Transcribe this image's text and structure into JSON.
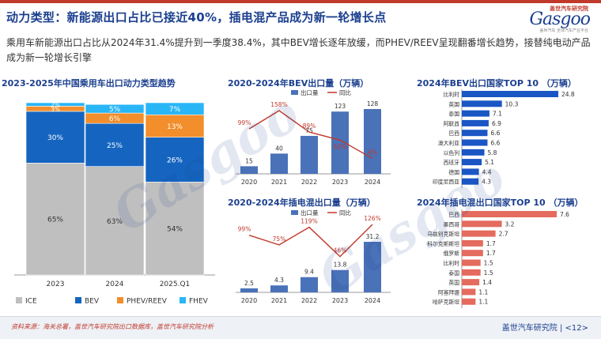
{
  "header": {
    "title": "动力类型：新能源出口占比已接近40%，插电混产品成为新一轮增长点",
    "logo_cn": "盖世汽车研究院",
    "logo_en": "Gasgoo",
    "logo_slogan": "盖世汽车 全球汽车产业平台"
  },
  "summary": "乘用车新能源出口占比从2024年31.4%提升到一季度38.4%，其中BEV增长逐年放缓，而PHEV/REEV呈现翻番增长趋势，接替纯电动产品成为新一轮增长引擎",
  "footer": {
    "source": "资料来源：海关总署，盖世汽车研究院出口数据库，盖世汽车研究院分析",
    "org": "盖世汽车研究院",
    "page": "<12>"
  },
  "colors": {
    "gray": "#bfbfbf",
    "blue": "#1565c0",
    "orange": "#f28e2b",
    "cyan": "#29b6f6",
    "bar_blue": "#4a72b8",
    "growth_red": "#c0392b",
    "hbar_blue": "#1a56c4"
  },
  "chart_data": [
    {
      "id": "mix",
      "type": "bar",
      "stacked": true,
      "title": "2023-2025年中国乘用车出口动力类型趋势",
      "categories": [
        "2023",
        "2024",
        "2025.Q1"
      ],
      "series": [
        {
          "name": "ICE",
          "values": [
            65,
            63,
            54
          ],
          "labels": [
            "65%",
            "63%",
            "54%"
          ],
          "color": "#bfbfbf"
        },
        {
          "name": "BEV",
          "values": [
            30,
            25,
            26
          ],
          "labels": [
            "30%",
            "25%",
            "26%"
          ],
          "color": "#1565c0"
        },
        {
          "name": "PHEV/REEV",
          "values": [
            3,
            6,
            13
          ],
          "labels": [
            "3%",
            "6%",
            "13%"
          ],
          "color": "#f28e2b"
        },
        {
          "name": "FHEV",
          "values": [
            2,
            5,
            7
          ],
          "labels": [
            "2%",
            "5%",
            "7%"
          ],
          "color": "#29b6f6"
        }
      ],
      "ylim": [
        0,
        100
      ],
      "legend": "bottom"
    },
    {
      "id": "bev",
      "type": "bar",
      "title": "2020-2024年BEV出口量（万辆）",
      "categories": [
        "2020",
        "2021",
        "2022",
        "2023",
        "2024"
      ],
      "series": [
        {
          "name": "出口量",
          "values": [
            15,
            40,
            75,
            123,
            128
          ],
          "labels": [
            "15",
            "40",
            "75",
            "123",
            "128"
          ]
        },
        {
          "name": "同比",
          "values": [
            99,
            158,
            89,
            63,
            4
          ],
          "labels": [
            "99%",
            "158%",
            "89%",
            "63%",
            "4%"
          ]
        }
      ],
      "legend": "top"
    },
    {
      "id": "phev",
      "type": "bar",
      "title": "2020-2024年插电混出口量（万辆）",
      "categories": [
        "2020",
        "2021",
        "2022",
        "2023",
        "2024"
      ],
      "series": [
        {
          "name": "出口量",
          "values": [
            2.5,
            4.3,
            9.4,
            13.8,
            31.2
          ],
          "labels": [
            "2.5",
            "4.3",
            "9.4",
            "13.8",
            "31.2"
          ]
        },
        {
          "name": "同比",
          "values": [
            99,
            75,
            119,
            46,
            126
          ],
          "labels": [
            "99%",
            "75%",
            "119%",
            "46%",
            "126%"
          ]
        }
      ],
      "legend": "top"
    },
    {
      "id": "bevTop",
      "type": "bar",
      "orientation": "horizontal",
      "title": "2024年BEV出口国家TOP 10 （万辆）",
      "categories": [
        "比利时",
        "英国",
        "泰国",
        "阿联酋",
        "巴西",
        "澳大利亚",
        "以色列",
        "西班牙",
        "德国",
        "印度尼西亚"
      ],
      "values": [
        24.8,
        10.3,
        7.1,
        6.9,
        6.6,
        6.6,
        5.8,
        5.1,
        4.4,
        4.3
      ],
      "labels": [
        "24.8",
        "10.3",
        "7.1",
        "6.9",
        "6.6",
        "6.6",
        "5.8",
        "5.1",
        "4.4",
        "4.3"
      ]
    },
    {
      "id": "phevTop",
      "type": "bar",
      "orientation": "horizontal",
      "title": "2024年插电混出口国家TOP 10 （万辆）",
      "categories": [
        "巴西",
        "墨西哥",
        "乌兹别克斯坦",
        "科尔克斯斯坦",
        "俄罗斯",
        "比利时",
        "泰国",
        "英国",
        "阿塞拜疆",
        "哈萨克斯坦"
      ],
      "values": [
        7.6,
        3.2,
        2.7,
        1.7,
        1.7,
        1.5,
        1.5,
        1.4,
        1.1,
        1.1
      ],
      "labels": [
        "7.6",
        "3.2",
        "2.7",
        "1.7",
        "1.7",
        "1.5",
        "1.5",
        "1.4",
        "1.1",
        "1.1"
      ]
    }
  ]
}
